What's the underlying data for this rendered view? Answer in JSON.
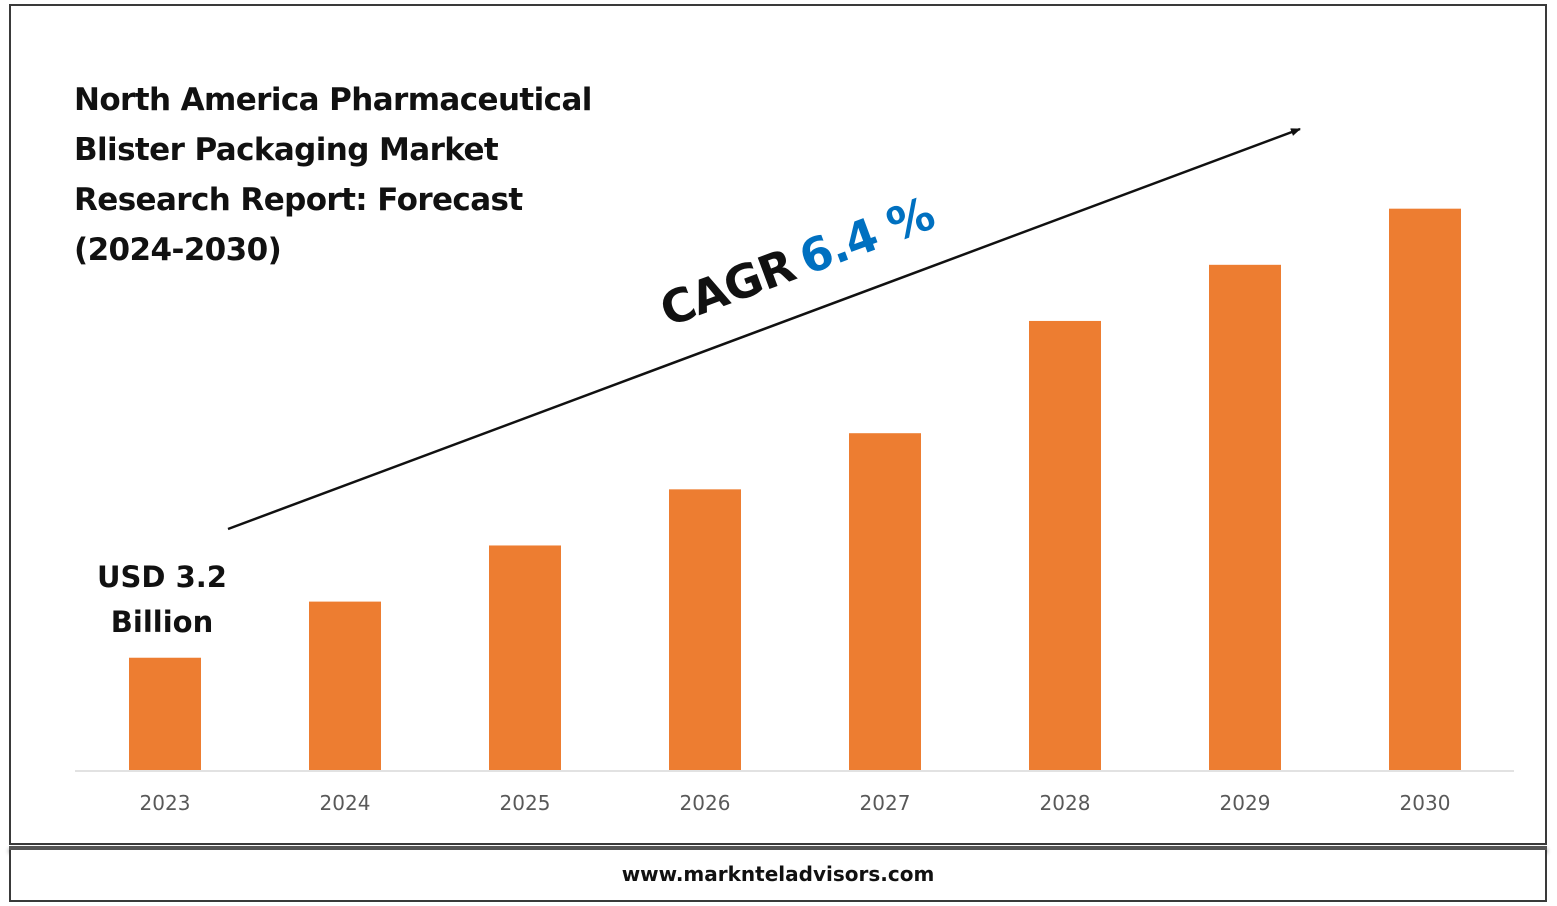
{
  "chart_data": {
    "type": "bar",
    "title": "North America Pharmaceutical Blister Packaging Market Research Report: Forecast (2024-2030)",
    "categories": [
      "2023",
      "2024",
      "2025",
      "2026",
      "2027",
      "2028",
      "2029",
      "2030"
    ],
    "values": [
      1,
      1.5,
      2,
      2.5,
      3,
      4,
      4.5,
      5
    ],
    "ylim": [
      0,
      5.3
    ],
    "xlabel": "",
    "ylabel": "",
    "grid": false,
    "legend": "none",
    "colors": {
      "bar": "#ED7D31",
      "axis": "#d9d9d9",
      "tick_text": "#595959",
      "cagr_label": "#111111",
      "cagr_value": "#0070C0",
      "arrow": "#111111"
    },
    "annotations": {
      "start_value_line1": "USD 3.2",
      "start_value_line2": "Billion",
      "cagr_label": "CAGR",
      "cagr_value": "6.4 %"
    }
  },
  "footer": {
    "url": "www.marknteladvisors.com"
  }
}
